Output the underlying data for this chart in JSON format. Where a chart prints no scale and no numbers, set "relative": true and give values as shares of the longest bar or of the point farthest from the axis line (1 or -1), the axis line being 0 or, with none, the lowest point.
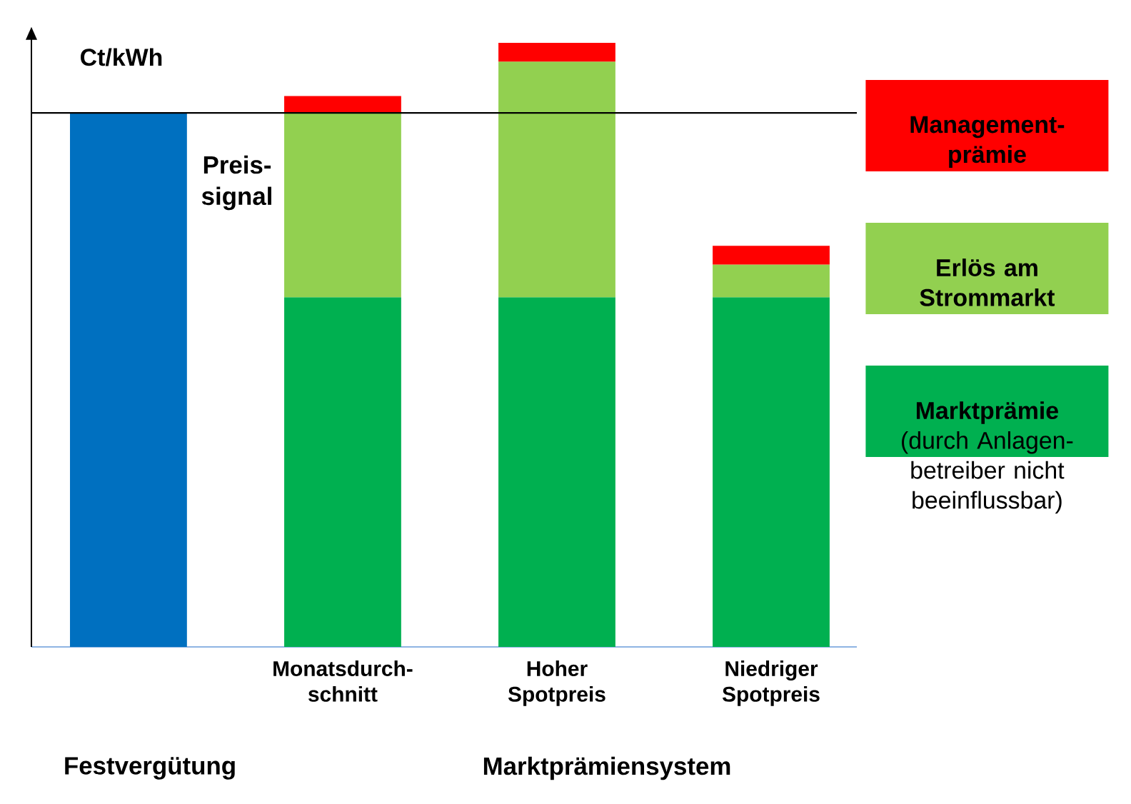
{
  "chart_data": {
    "type": "bar",
    "stacked": true,
    "relative": true,
    "ylabel": "Ct/kWh",
    "categories": [
      null,
      "Monatsdurch-schnitt",
      "Hoher Spotpreis",
      "Niedriger Spotpreis"
    ],
    "series": [
      {
        "color": "#0070c0",
        "values": [
          0.884,
          null,
          null,
          null
        ]
      },
      {
        "name": "**Marktprämie** (durch Anlagen-betreiber nicht beeinflussbar)",
        "color": "#00b050",
        "values": [
          null,
          0.579,
          0.579,
          0.579
        ]
      },
      {
        "name": "Erlös am Strommarkt",
        "color": "#92d050",
        "values": [
          null,
          0.305,
          0.39,
          0.054
        ]
      },
      {
        "name": "Management-prämie",
        "color": "#ff0000",
        "values": [
          null,
          0.028,
          0.031,
          0.031
        ]
      }
    ],
    "ref_lines": [
      {
        "axis": "y",
        "value": 0.884,
        "color": "#000000"
      }
    ],
    "annotations": [
      "Preis-signal",
      "Festvergütung",
      "Marktprämiensystem"
    ],
    "legend": "right"
  }
}
